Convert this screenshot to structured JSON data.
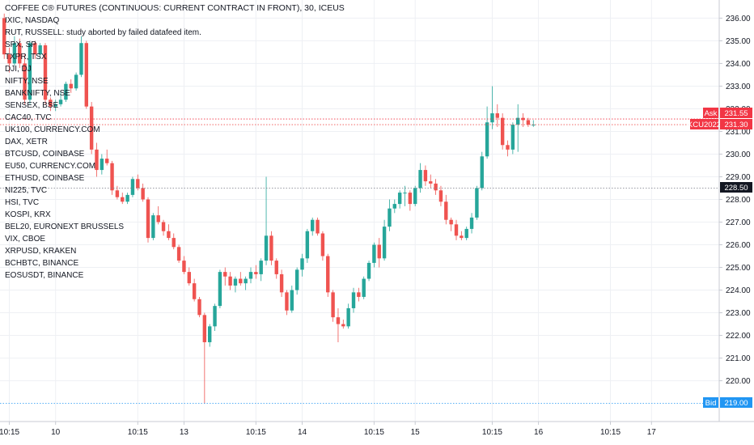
{
  "title": "COFFEE C® FUTURES (CONTINUOUS: CURRENT CONTRACT IN FRONT), 30, ICEUS",
  "overlays": [
    "IXIC, NASDAQ",
    "RUT, RUSSELL: study aborted by failed datafeed item.",
    "SPX, SP",
    "TXPR, TSX",
    "DJI, DJ",
    "NIFTY, NSE",
    "BANKNIFTY, NSE",
    "SENSEX, BSE",
    "CAC40, TVC",
    "UK100, CURRENCY.COM",
    "DAX, XETR",
    "BTCUSD, COINBASE",
    "EU50, CURRENCY.COM",
    "ETHUSD, COINBASE",
    "NI225, TVC",
    "HSI, TVC",
    "KOSPI, KRX",
    "BEL20, EURONEXT BRUSSELS",
    "VIX, CBOE",
    "XRPUSD, KRAKEN",
    "BCHBTC, BINANCE",
    "EOSUSDT, BINANCE"
  ],
  "price_tags": {
    "ask_label": "Ask",
    "ask_value": "231.55",
    "symbol_label": "KCU2022",
    "symbol_value": "231.30",
    "crosshair_value": "228.50",
    "bid_label": "Bid",
    "bid_value": "219.00"
  },
  "colors": {
    "up": "#26a69a",
    "down": "#ef5350",
    "ask": "#f23645",
    "bid": "#2196f3",
    "text": "#131722"
  },
  "chart_data": {
    "type": "candlestick",
    "ylim": [
      218.2,
      236.8
    ],
    "y_ticks": [
      220,
      221,
      222,
      223,
      224,
      225,
      226,
      227,
      228,
      229,
      230,
      231,
      232,
      233,
      234,
      235,
      236
    ],
    "x_ticks": [
      {
        "label": "10:15",
        "index": 1
      },
      {
        "label": "10",
        "index": 10
      },
      {
        "label": "10:15",
        "index": 26
      },
      {
        "label": "13",
        "index": 35
      },
      {
        "label": "10:15",
        "index": 49
      },
      {
        "label": "14",
        "index": 58
      },
      {
        "label": "10:15",
        "index": 72
      },
      {
        "label": "15",
        "index": 80
      },
      {
        "label": "10:15",
        "index": 95
      },
      {
        "label": "16",
        "index": 104
      },
      {
        "label": "10:15",
        "index": 118
      },
      {
        "label": "17",
        "index": 126
      }
    ],
    "crosshair_price": 228.5,
    "bid_price": 219.0,
    "ask_price": 231.55,
    "last_price": 231.3,
    "candles": [
      [
        236.0,
        236.2,
        234.2,
        234.4
      ],
      [
        234.4,
        234.7,
        233.6,
        234.0
      ],
      [
        234.0,
        235.2,
        233.9,
        234.9
      ],
      [
        234.9,
        235.1,
        233.8,
        234.0
      ],
      [
        234.0,
        234.4,
        232.2,
        232.4
      ],
      [
        232.4,
        235.0,
        232.2,
        234.9
      ],
      [
        234.9,
        235.0,
        234.2,
        234.4
      ],
      [
        234.4,
        234.9,
        234.2,
        234.8
      ],
      [
        234.8,
        234.9,
        232.2,
        232.4
      ],
      [
        232.4,
        232.5,
        231.9,
        232.1
      ],
      [
        232.1,
        232.4,
        231.9,
        232.2
      ],
      [
        232.2,
        232.8,
        232.1,
        232.4
      ],
      [
        232.4,
        233.2,
        232.3,
        233.1
      ],
      [
        233.1,
        233.3,
        232.7,
        232.9
      ],
      [
        232.9,
        233.6,
        232.8,
        233.5
      ],
      [
        233.5,
        235.2,
        233.4,
        234.9
      ],
      [
        234.9,
        235.0,
        232.0,
        232.1
      ],
      [
        232.1,
        232.3,
        230.0,
        230.2
      ],
      [
        230.2,
        230.5,
        229.0,
        229.3
      ],
      [
        229.3,
        230.0,
        229.1,
        229.8
      ],
      [
        229.8,
        230.2,
        229.5,
        229.6
      ],
      [
        229.6,
        229.7,
        228.2,
        228.4
      ],
      [
        228.4,
        228.6,
        228.0,
        228.1
      ],
      [
        228.1,
        228.3,
        227.8,
        227.9
      ],
      [
        227.9,
        228.3,
        227.8,
        228.2
      ],
      [
        228.2,
        229.0,
        228.1,
        228.9
      ],
      [
        228.9,
        229.1,
        228.4,
        228.5
      ],
      [
        228.5,
        228.7,
        227.9,
        228.0
      ],
      [
        228.0,
        228.1,
        226.1,
        226.3
      ],
      [
        226.3,
        227.4,
        226.2,
        227.3
      ],
      [
        227.3,
        227.7,
        226.9,
        227.0
      ],
      [
        227.0,
        227.1,
        226.4,
        226.6
      ],
      [
        226.6,
        226.9,
        226.2,
        226.3
      ],
      [
        226.3,
        226.5,
        225.8,
        225.9
      ],
      [
        225.9,
        226.0,
        225.2,
        225.3
      ],
      [
        225.3,
        225.5,
        224.7,
        224.8
      ],
      [
        224.8,
        225.0,
        224.2,
        224.3
      ],
      [
        224.3,
        224.5,
        223.5,
        223.6
      ],
      [
        223.6,
        223.7,
        222.8,
        222.9
      ],
      [
        222.9,
        223.0,
        219.0,
        221.7
      ],
      [
        221.7,
        222.5,
        221.5,
        222.4
      ],
      [
        222.4,
        223.4,
        222.2,
        223.3
      ],
      [
        223.3,
        224.9,
        223.2,
        224.8
      ],
      [
        224.8,
        225.0,
        224.2,
        224.6
      ],
      [
        224.6,
        224.8,
        224.0,
        224.2
      ],
      [
        224.2,
        224.6,
        223.9,
        224.5
      ],
      [
        224.5,
        224.8,
        224.2,
        224.3
      ],
      [
        224.3,
        224.6,
        224.0,
        224.5
      ],
      [
        224.5,
        225.0,
        224.3,
        224.8
      ],
      [
        224.8,
        225.1,
        224.5,
        224.7
      ],
      [
        224.7,
        225.4,
        224.4,
        225.3
      ],
      [
        225.3,
        229.0,
        225.1,
        226.4
      ],
      [
        226.4,
        226.6,
        225.1,
        225.3
      ],
      [
        225.3,
        225.4,
        224.5,
        224.7
      ],
      [
        224.7,
        224.9,
        223.7,
        223.9
      ],
      [
        223.9,
        224.0,
        222.9,
        223.1
      ],
      [
        223.1,
        224.2,
        223.0,
        224.0
      ],
      [
        224.0,
        225.0,
        223.8,
        224.9
      ],
      [
        224.9,
        225.6,
        224.6,
        225.4
      ],
      [
        225.4,
        226.7,
        225.2,
        226.6
      ],
      [
        226.6,
        227.2,
        226.4,
        227.1
      ],
      [
        227.1,
        227.2,
        226.4,
        226.5
      ],
      [
        226.5,
        226.6,
        225.3,
        225.5
      ],
      [
        225.5,
        225.6,
        223.7,
        223.9
      ],
      [
        223.9,
        224.0,
        222.6,
        222.8
      ],
      [
        222.8,
        223.2,
        221.7,
        222.5
      ],
      [
        222.5,
        222.7,
        222.3,
        222.4
      ],
      [
        222.4,
        223.4,
        222.3,
        223.2
      ],
      [
        223.2,
        224.1,
        223.0,
        223.9
      ],
      [
        223.9,
        224.1,
        223.5,
        223.7
      ],
      [
        223.7,
        224.6,
        223.6,
        224.5
      ],
      [
        224.5,
        225.3,
        224.4,
        225.2
      ],
      [
        225.2,
        226.1,
        225.0,
        226.0
      ],
      [
        226.0,
        226.3,
        225.0,
        225.4
      ],
      [
        225.4,
        227.1,
        225.3,
        226.8
      ],
      [
        226.8,
        228.0,
        226.6,
        227.6
      ],
      [
        227.6,
        228.0,
        227.4,
        227.8
      ],
      [
        227.8,
        228.4,
        227.6,
        228.3
      ],
      [
        228.3,
        228.6,
        227.7,
        228.3
      ],
      [
        228.3,
        228.4,
        227.5,
        227.8
      ],
      [
        227.8,
        228.6,
        227.7,
        228.5
      ],
      [
        228.5,
        229.6,
        228.3,
        229.3
      ],
      [
        229.3,
        229.5,
        228.6,
        228.8
      ],
      [
        228.8,
        229.1,
        228.5,
        228.7
      ],
      [
        228.7,
        228.9,
        228.2,
        228.4
      ],
      [
        228.4,
        228.6,
        227.7,
        227.9
      ],
      [
        227.9,
        228.2,
        226.9,
        227.1
      ],
      [
        227.1,
        227.2,
        226.6,
        226.9
      ],
      [
        226.9,
        227.1,
        226.2,
        226.4
      ],
      [
        226.4,
        226.6,
        226.2,
        226.3
      ],
      [
        226.3,
        226.8,
        226.2,
        226.7
      ],
      [
        226.7,
        227.4,
        226.5,
        227.2
      ],
      [
        227.2,
        228.6,
        227.1,
        228.5
      ],
      [
        228.5,
        230.1,
        228.4,
        229.9
      ],
      [
        229.9,
        232.1,
        229.8,
        231.4
      ],
      [
        231.4,
        233.0,
        231.1,
        231.8
      ],
      [
        231.8,
        232.2,
        231.2,
        231.6
      ],
      [
        231.6,
        231.8,
        230.2,
        230.4
      ],
      [
        230.4,
        230.6,
        229.9,
        230.2
      ],
      [
        230.2,
        231.4,
        230.0,
        231.3
      ],
      [
        231.3,
        232.2,
        230.1,
        231.6
      ],
      [
        231.6,
        231.8,
        231.2,
        231.5
      ],
      [
        231.5,
        231.6,
        231.2,
        231.3
      ],
      [
        231.3,
        231.5,
        231.2,
        231.3
      ]
    ]
  }
}
